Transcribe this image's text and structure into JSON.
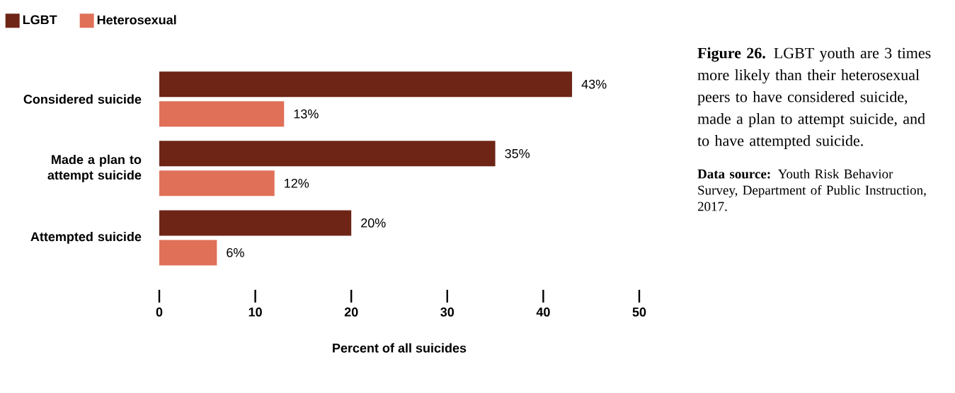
{
  "chart_data": {
    "type": "bar",
    "orientation": "horizontal",
    "title": "**Figure 26.** LGBT youth are 3 times more likely than their heterosexual peers to have considered suicide, made a plan to attempt suicide, and to have attempted suicide.",
    "annotations": [
      "**Data source:** Youth Risk Behavior Survey, Department of Public Instruction, 2017."
    ],
    "xlabel": "Percent of all suicides",
    "categories": [
      "Considered suicide",
      "Made a plan to attempt suicide",
      "Attempted suicide"
    ],
    "series": [
      {
        "name": "LGBT",
        "color": "#6e2516",
        "values": [
          43,
          35,
          20
        ],
        "value_labels": [
          "43%",
          "35%",
          "20%"
        ]
      },
      {
        "name": "Heterosexual",
        "color": "#e07058",
        "values": [
          13,
          12,
          6
        ],
        "value_labels": [
          "13%",
          "12%",
          "6%"
        ]
      }
    ],
    "xlim": [
      0,
      50
    ],
    "xticks": [
      0,
      10,
      20,
      30,
      40,
      50
    ],
    "legend": "top left"
  }
}
